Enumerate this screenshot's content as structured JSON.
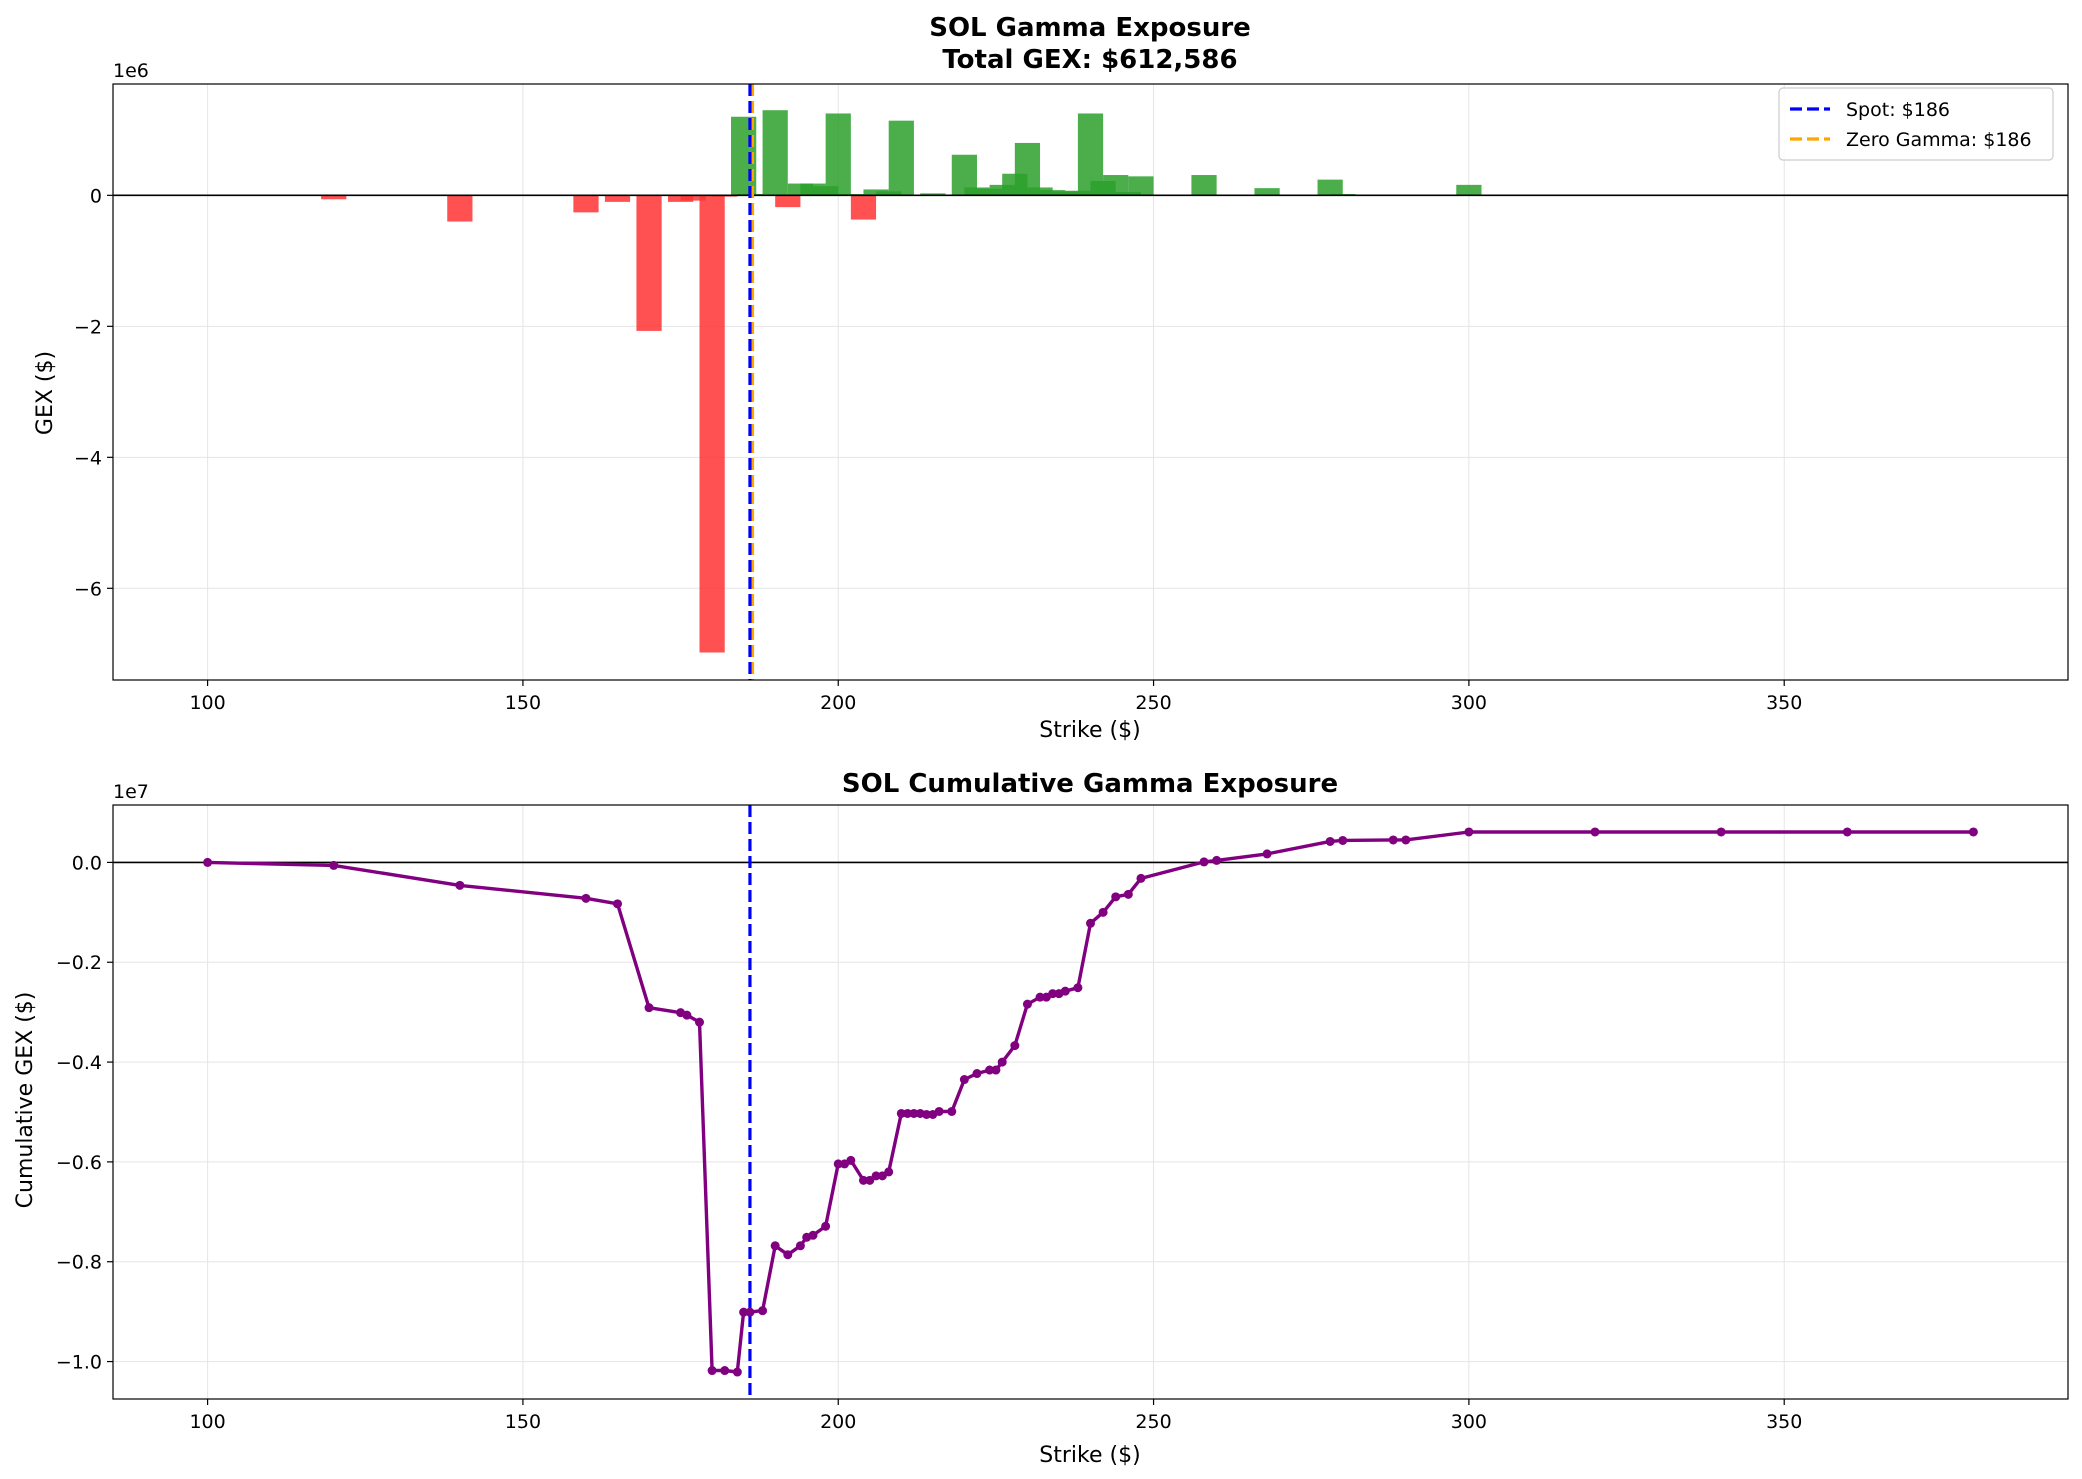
{
  "chart_data": [
    {
      "type": "bar",
      "title": "SOL Gamma Exposure",
      "subtitle": "Total GEX: $612,586",
      "xlabel": "Strike ($)",
      "ylabel": "GEX ($)",
      "y_offset_label": "1e6",
      "xlim": [
        85,
        395
      ],
      "ylim": [
        -7.4,
        1.7
      ],
      "x_ticks": [
        100,
        150,
        200,
        250,
        300,
        350
      ],
      "y_ticks": [
        0,
        -2,
        -4,
        -6
      ],
      "y_tick_labels": [
        "0",
        "−2",
        "−4",
        "−6"
      ],
      "grid": true,
      "legend_position": "top-right",
      "positive_color": "#2ca02c",
      "negative_color": "#ff3333",
      "bar_width": 4,
      "bars": [
        {
          "x": 120,
          "y": -0.06
        },
        {
          "x": 140,
          "y": -0.4
        },
        {
          "x": 160,
          "y": -0.26
        },
        {
          "x": 165,
          "y": -0.1
        },
        {
          "x": 170,
          "y": -2.07
        },
        {
          "x": 175,
          "y": -0.1
        },
        {
          "x": 177,
          "y": -0.08
        },
        {
          "x": 180,
          "y": -6.98
        },
        {
          "x": 182,
          "y": -0.02
        },
        {
          "x": 184,
          "y": 0.01
        },
        {
          "x": 185,
          "y": 1.2
        },
        {
          "x": 186,
          "y": 0.02
        },
        {
          "x": 190,
          "y": 1.3
        },
        {
          "x": 192,
          "y": -0.18
        },
        {
          "x": 194,
          "y": 0.18
        },
        {
          "x": 196,
          "y": 0.18
        },
        {
          "x": 198,
          "y": 0.14
        },
        {
          "x": 200,
          "y": 1.25
        },
        {
          "x": 202,
          "y": 0.02
        },
        {
          "x": 204,
          "y": -0.37
        },
        {
          "x": 206,
          "y": 0.09
        },
        {
          "x": 208,
          "y": 0.06
        },
        {
          "x": 210,
          "y": 1.14
        },
        {
          "x": 215,
          "y": 0.03
        },
        {
          "x": 220,
          "y": 0.62
        },
        {
          "x": 222,
          "y": 0.12
        },
        {
          "x": 224,
          "y": 0.1
        },
        {
          "x": 226,
          "y": 0.16
        },
        {
          "x": 228,
          "y": 0.33
        },
        {
          "x": 230,
          "y": 0.8
        },
        {
          "x": 232,
          "y": 0.12
        },
        {
          "x": 234,
          "y": 0.08
        },
        {
          "x": 236,
          "y": 0.06
        },
        {
          "x": 238,
          "y": 0.07
        },
        {
          "x": 240,
          "y": 1.25
        },
        {
          "x": 242,
          "y": 0.22
        },
        {
          "x": 244,
          "y": 0.31
        },
        {
          "x": 246,
          "y": 0.05
        },
        {
          "x": 248,
          "y": 0.29
        },
        {
          "x": 258,
          "y": 0.31
        },
        {
          "x": 268,
          "y": 0.11
        },
        {
          "x": 278,
          "y": 0.24
        },
        {
          "x": 280,
          "y": 0.02
        },
        {
          "x": 300,
          "y": 0.16
        }
      ],
      "spot_line": {
        "x": 186,
        "label": "Spot: $186",
        "color": "#0000ff"
      },
      "zero_gamma_line": {
        "x": 186.4,
        "label": "Zero Gamma: $186",
        "color": "#ffa500"
      }
    },
    {
      "type": "line",
      "title": "SOL Cumulative Gamma Exposure",
      "xlabel": "Strike ($)",
      "ylabel": "Cumulative GEX ($)",
      "y_offset_label": "1e7",
      "xlim": [
        85,
        395
      ],
      "ylim": [
        -1.075,
        0.115
      ],
      "x_ticks": [
        100,
        150,
        200,
        250,
        300,
        350
      ],
      "y_ticks": [
        0.0,
        -0.2,
        -0.4,
        -0.6,
        -0.8,
        -1.0
      ],
      "y_tick_labels": [
        "0.0",
        "−0.2",
        "−0.4",
        "−0.6",
        "−0.8",
        "−1.0"
      ],
      "grid": true,
      "line_color": "#800080",
      "spot_line": {
        "x": 186,
        "color": "#0000ff"
      },
      "points": [
        [
          100,
          0.0
        ],
        [
          120,
          -0.006
        ],
        [
          140,
          -0.046
        ],
        [
          160,
          -0.072
        ],
        [
          165,
          -0.083
        ],
        [
          170,
          -0.291
        ],
        [
          175,
          -0.301
        ],
        [
          176,
          -0.306
        ],
        [
          178,
          -0.32
        ],
        [
          180,
          -1.018
        ],
        [
          182,
          -1.018
        ],
        [
          184,
          -1.021
        ],
        [
          185,
          -0.901
        ],
        [
          186,
          -0.901
        ],
        [
          188,
          -0.898
        ],
        [
          190,
          -0.768
        ],
        [
          192,
          -0.786
        ],
        [
          194,
          -0.768
        ],
        [
          195,
          -0.751
        ],
        [
          196,
          -0.747
        ],
        [
          198,
          -0.729
        ],
        [
          200,
          -0.604
        ],
        [
          201,
          -0.604
        ],
        [
          202,
          -0.597
        ],
        [
          204,
          -0.637
        ],
        [
          205,
          -0.637
        ],
        [
          206,
          -0.628
        ],
        [
          207,
          -0.628
        ],
        [
          208,
          -0.62
        ],
        [
          210,
          -0.503
        ],
        [
          211,
          -0.503
        ],
        [
          212,
          -0.503
        ],
        [
          213,
          -0.503
        ],
        [
          214,
          -0.505
        ],
        [
          215,
          -0.505
        ],
        [
          216,
          -0.499
        ],
        [
          218,
          -0.499
        ],
        [
          220,
          -0.435
        ],
        [
          222,
          -0.423
        ],
        [
          224,
          -0.416
        ],
        [
          225,
          -0.416
        ],
        [
          226,
          -0.4
        ],
        [
          228,
          -0.367
        ],
        [
          230,
          -0.284
        ],
        [
          232,
          -0.27
        ],
        [
          233,
          -0.27
        ],
        [
          234,
          -0.263
        ],
        [
          235,
          -0.263
        ],
        [
          236,
          -0.258
        ],
        [
          238,
          -0.251
        ],
        [
          240,
          -0.122
        ],
        [
          242,
          -0.1
        ],
        [
          244,
          -0.069
        ],
        [
          246,
          -0.064
        ],
        [
          248,
          -0.032
        ],
        [
          258,
          0.001
        ],
        [
          260,
          0.004
        ],
        [
          268,
          0.017
        ],
        [
          278,
          0.042
        ],
        [
          280,
          0.044
        ],
        [
          288,
          0.045
        ],
        [
          290,
          0.045
        ],
        [
          300,
          0.061
        ],
        [
          320,
          0.061
        ],
        [
          340,
          0.061
        ],
        [
          360,
          0.061
        ],
        [
          380,
          0.061
        ]
      ]
    }
  ]
}
